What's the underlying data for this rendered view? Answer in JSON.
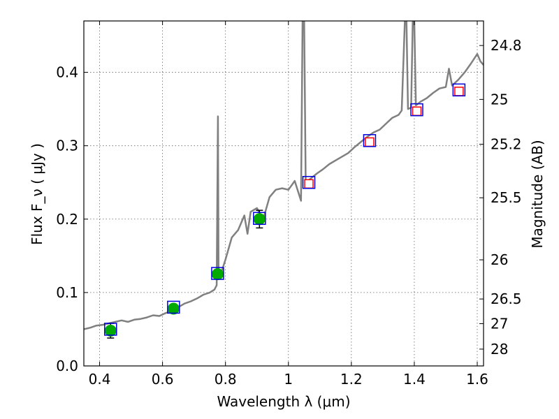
{
  "chart_data": {
    "type": "scatter",
    "xlabel": "Wavelength  λ (μm)",
    "ylabel": "Flux  F_ν  ( μJy )",
    "ylabel_right": "Magnitude (AB)",
    "xlim": [
      0.35,
      1.62
    ],
    "ylim": [
      0.0,
      0.47
    ],
    "grid": true,
    "x_ticks": [
      {
        "value": 0.4,
        "label": "0.4"
      },
      {
        "value": 0.6,
        "label": "0.6"
      },
      {
        "value": 0.8,
        "label": "0.8"
      },
      {
        "value": 1.0,
        "label": "1"
      },
      {
        "value": 1.2,
        "label": "1.2"
      },
      {
        "value": 1.4,
        "label": "1.4"
      },
      {
        "value": 1.6,
        "label": "1.6"
      }
    ],
    "y_ticks": [
      {
        "value": 0.0,
        "label": "0.0"
      },
      {
        "value": 0.1,
        "label": "0.1"
      },
      {
        "value": 0.2,
        "label": "0.2"
      },
      {
        "value": 0.3,
        "label": "0.3"
      },
      {
        "value": 0.4,
        "label": "0.4"
      }
    ],
    "right_ticks": [
      {
        "value": 24.8,
        "label": "24.8"
      },
      {
        "value": 25.0,
        "label": "25"
      },
      {
        "value": 25.2,
        "label": "25.2"
      },
      {
        "value": 25.5,
        "label": "25.5"
      },
      {
        "value": 26.0,
        "label": "26"
      },
      {
        "value": 26.5,
        "label": "26.5"
      },
      {
        "value": 27.0,
        "label": "27"
      },
      {
        "value": 28.0,
        "label": "28"
      }
    ],
    "spectrum": {
      "color": "#808080",
      "points": [
        [
          0.35,
          0.05
        ],
        [
          0.37,
          0.052
        ],
        [
          0.39,
          0.055
        ],
        [
          0.41,
          0.056
        ],
        [
          0.43,
          0.058
        ],
        [
          0.45,
          0.06
        ],
        [
          0.47,
          0.062
        ],
        [
          0.49,
          0.06
        ],
        [
          0.51,
          0.063
        ],
        [
          0.53,
          0.064
        ],
        [
          0.55,
          0.066
        ],
        [
          0.57,
          0.069
        ],
        [
          0.59,
          0.068
        ],
        [
          0.61,
          0.072
        ],
        [
          0.63,
          0.075
        ],
        [
          0.65,
          0.08
        ],
        [
          0.67,
          0.085
        ],
        [
          0.69,
          0.088
        ],
        [
          0.71,
          0.092
        ],
        [
          0.73,
          0.097
        ],
        [
          0.75,
          0.1
        ],
        [
          0.765,
          0.104
        ],
        [
          0.772,
          0.11
        ],
        [
          0.776,
          0.34
        ],
        [
          0.778,
          0.12
        ],
        [
          0.785,
          0.125
        ],
        [
          0.8,
          0.145
        ],
        [
          0.82,
          0.175
        ],
        [
          0.84,
          0.185
        ],
        [
          0.86,
          0.205
        ],
        [
          0.87,
          0.18
        ],
        [
          0.88,
          0.21
        ],
        [
          0.9,
          0.215
        ],
        [
          0.92,
          0.2
        ],
        [
          0.94,
          0.23
        ],
        [
          0.96,
          0.24
        ],
        [
          0.98,
          0.242
        ],
        [
          1.0,
          0.24
        ],
        [
          1.02,
          0.252
        ],
        [
          1.04,
          0.225
        ],
        [
          1.045,
          0.47
        ],
        [
          1.05,
          0.47
        ],
        [
          1.055,
          0.25
        ],
        [
          1.07,
          0.255
        ],
        [
          1.09,
          0.262
        ],
        [
          1.11,
          0.268
        ],
        [
          1.13,
          0.275
        ],
        [
          1.15,
          0.28
        ],
        [
          1.17,
          0.285
        ],
        [
          1.19,
          0.29
        ],
        [
          1.21,
          0.298
        ],
        [
          1.23,
          0.305
        ],
        [
          1.25,
          0.312
        ],
        [
          1.27,
          0.318
        ],
        [
          1.29,
          0.322
        ],
        [
          1.31,
          0.33
        ],
        [
          1.33,
          0.338
        ],
        [
          1.35,
          0.342
        ],
        [
          1.36,
          0.348
        ],
        [
          1.37,
          0.47
        ],
        [
          1.375,
          0.47
        ],
        [
          1.38,
          0.35
        ],
        [
          1.39,
          0.352
        ],
        [
          1.395,
          0.47
        ],
        [
          1.4,
          0.47
        ],
        [
          1.405,
          0.355
        ],
        [
          1.42,
          0.36
        ],
        [
          1.44,
          0.365
        ],
        [
          1.46,
          0.372
        ],
        [
          1.48,
          0.378
        ],
        [
          1.5,
          0.38
        ],
        [
          1.51,
          0.405
        ],
        [
          1.52,
          0.382
        ],
        [
          1.54,
          0.39
        ],
        [
          1.56,
          0.4
        ],
        [
          1.58,
          0.412
        ],
        [
          1.6,
          0.425
        ],
        [
          1.61,
          0.415
        ],
        [
          1.62,
          0.41
        ]
      ]
    },
    "series": [
      {
        "marker": "circle",
        "color": "#00aa00",
        "points": [
          {
            "x": 0.435,
            "y": 0.048,
            "err": 0.01
          },
          {
            "x": 0.635,
            "y": 0.078,
            "err": 0.005
          },
          {
            "x": 0.775,
            "y": 0.125,
            "err": 0.006
          },
          {
            "x": 0.908,
            "y": 0.2,
            "err": 0.012
          }
        ]
      },
      {
        "marker": "small-square",
        "color": "#ff0000",
        "points": [
          {
            "x": 1.065,
            "y": 0.248
          },
          {
            "x": 1.258,
            "y": 0.305
          },
          {
            "x": 1.408,
            "y": 0.347
          },
          {
            "x": 1.542,
            "y": 0.374
          }
        ]
      },
      {
        "marker": "open-square",
        "color": "#0000dd",
        "points": [
          {
            "x": 0.435,
            "y": 0.05
          },
          {
            "x": 0.635,
            "y": 0.08
          },
          {
            "x": 0.775,
            "y": 0.126
          },
          {
            "x": 0.908,
            "y": 0.201
          },
          {
            "x": 1.065,
            "y": 0.25
          },
          {
            "x": 1.258,
            "y": 0.307
          },
          {
            "x": 1.408,
            "y": 0.349
          },
          {
            "x": 1.542,
            "y": 0.376
          }
        ]
      }
    ]
  }
}
